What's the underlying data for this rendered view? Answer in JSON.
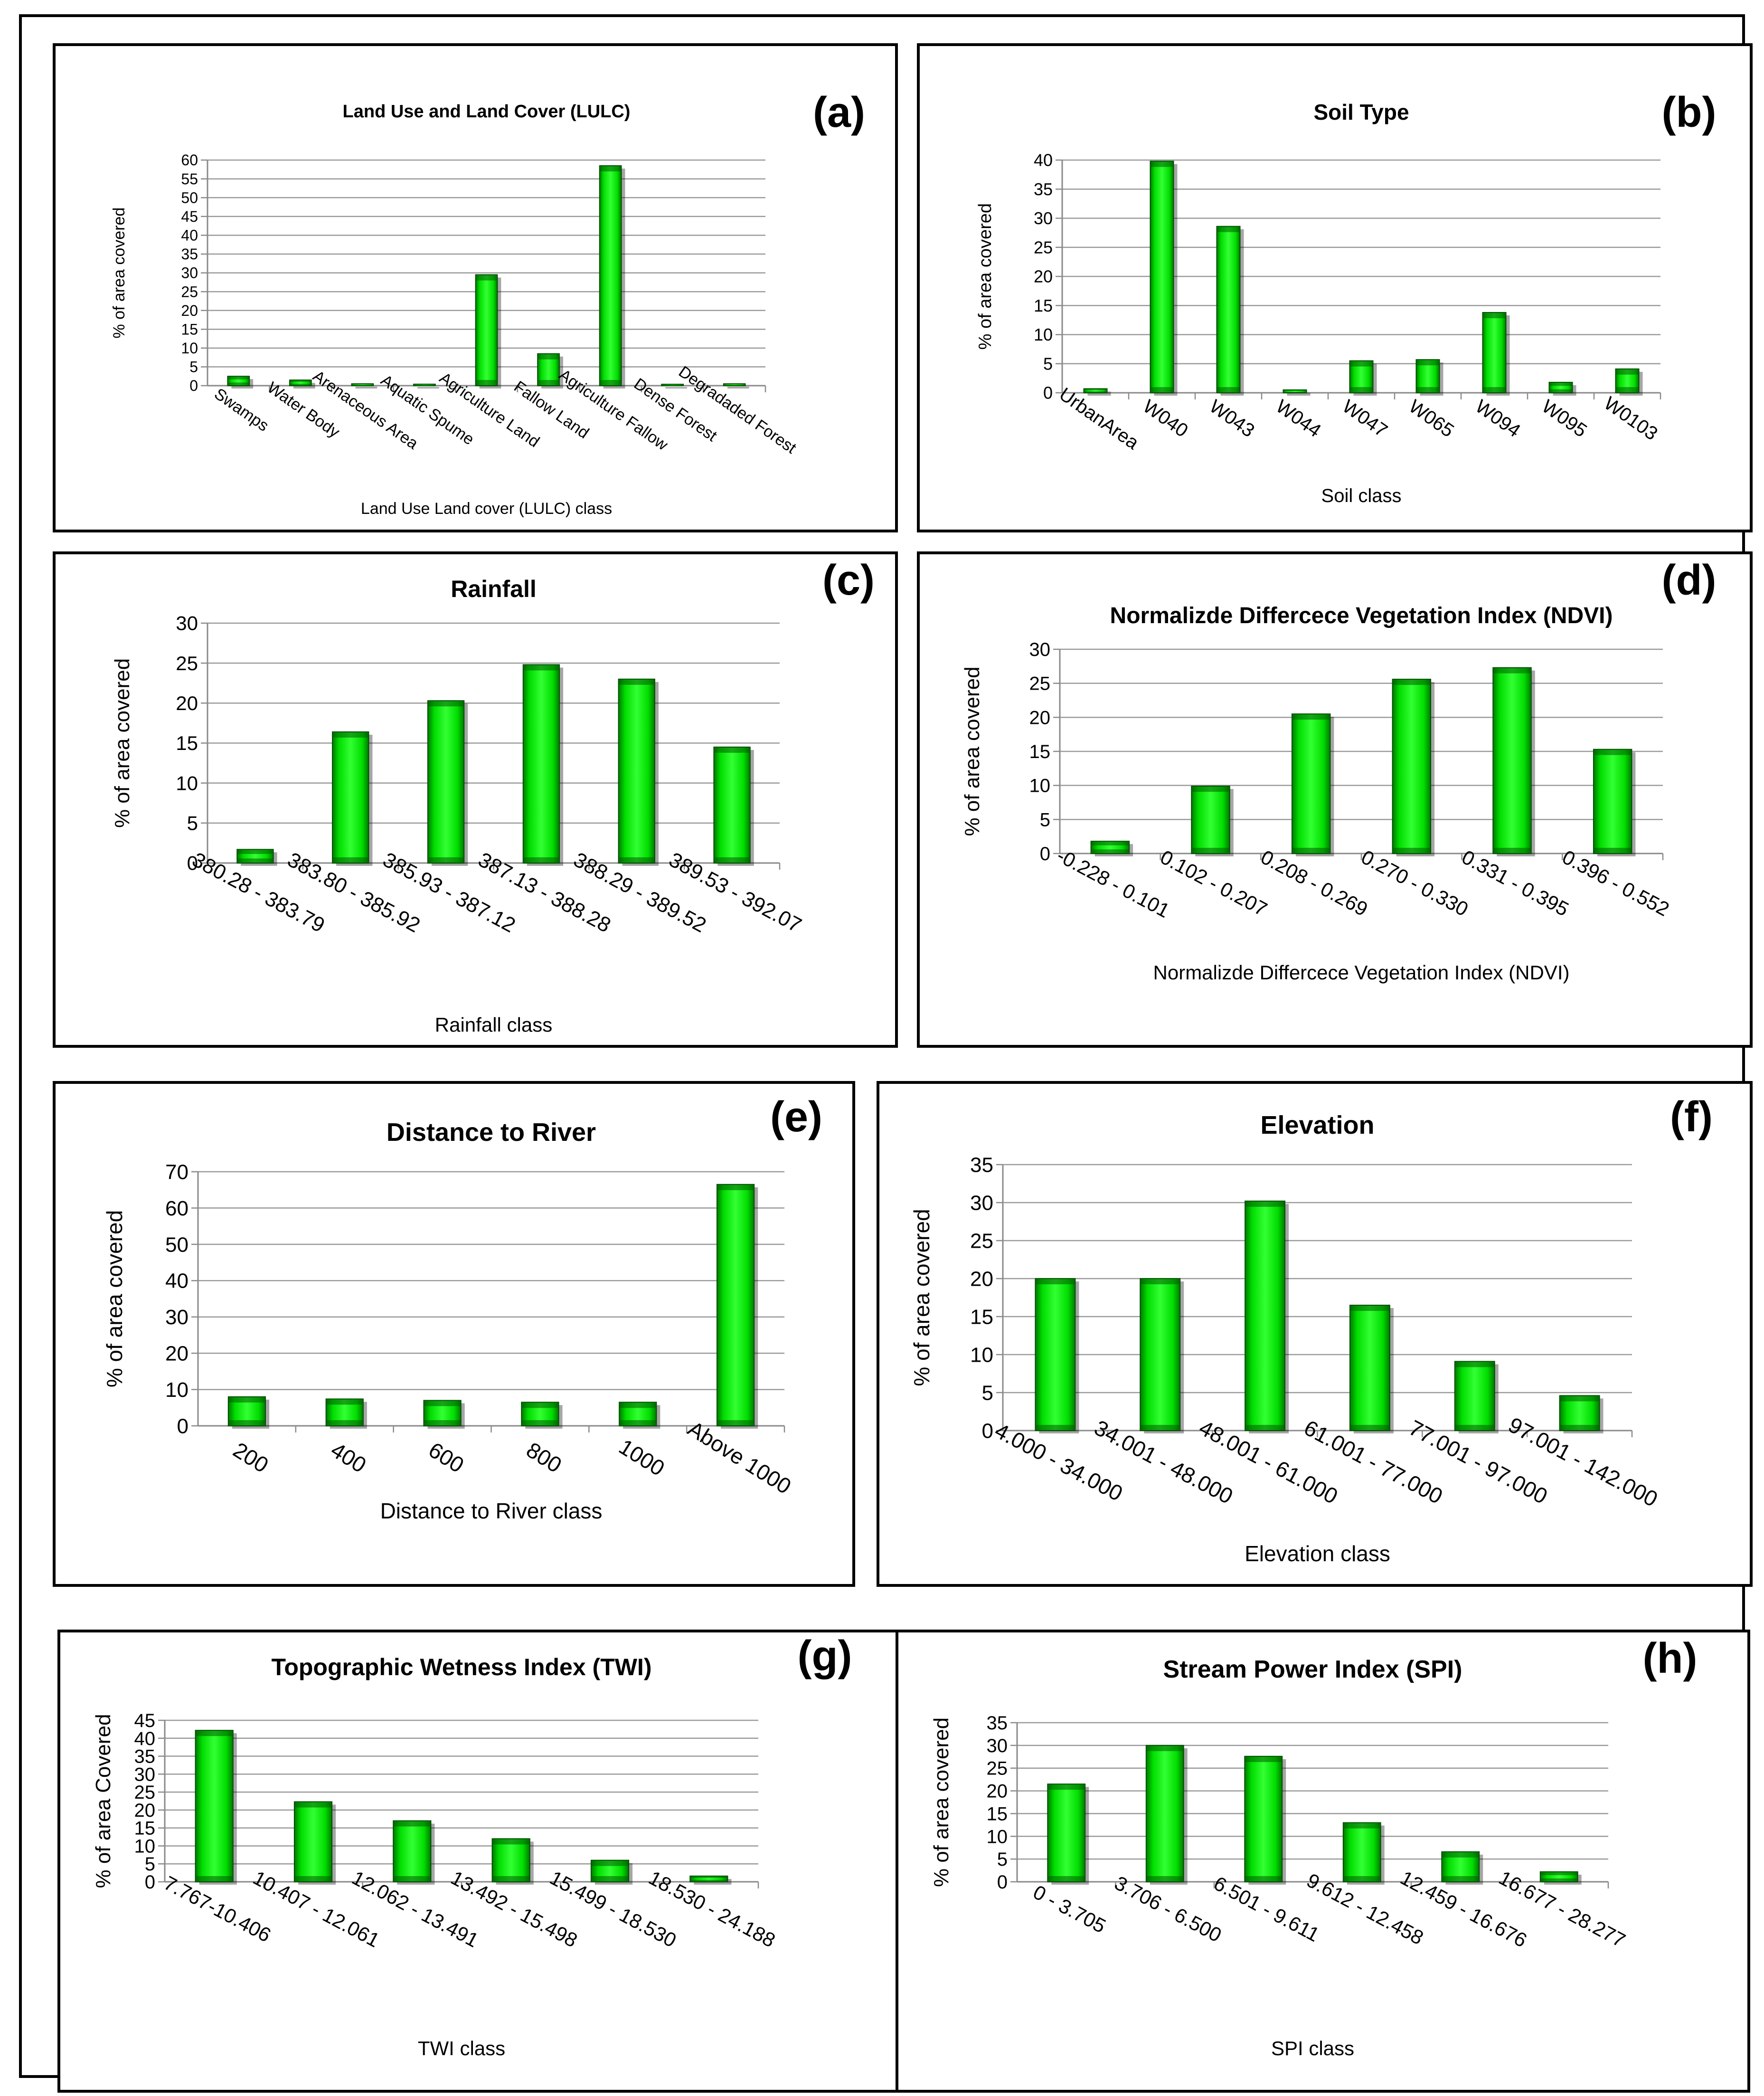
{
  "chart_data": [
    {
      "id": "a",
      "type": "bar",
      "tag": "(a)",
      "title": "Land Use and Land Cover (LULC)",
      "xlabel": "Land Use Land cover (LULC) class",
      "ylabel": "% of area covered",
      "ylim": [
        0,
        60
      ],
      "ytick_step": 5,
      "yticks": [
        "0",
        "5",
        "10",
        "15",
        "20",
        "25",
        "30",
        "35",
        "40",
        "45",
        "50",
        "55",
        "60"
      ],
      "grid": true,
      "categories": [
        "Swamps",
        "Water Body",
        "Arenaceous Area",
        "Aquatic Spume",
        "Agriculture Land",
        "Fallow Land",
        "Agriculture Fallow",
        "Dense Forest",
        "Degradaded Forest"
      ],
      "values": [
        2.5,
        1.5,
        0.5,
        0.4,
        29.5,
        8.5,
        58.5,
        0.3,
        0.5
      ]
    },
    {
      "id": "b",
      "type": "bar",
      "tag": "(b)",
      "title": "Soil Type",
      "xlabel": "Soil  class",
      "ylabel": "% of area covered",
      "ylim": [
        0,
        40
      ],
      "ytick_step": 5,
      "yticks": [
        "0",
        "5",
        "10",
        "15",
        "20",
        "25",
        "30",
        "35",
        "40"
      ],
      "grid": true,
      "categories": [
        "UrbanArea",
        "W040",
        "W043",
        "W044",
        "W047",
        "W065",
        "W094",
        "W095",
        "W0103"
      ],
      "values": [
        0.7,
        39.8,
        28.6,
        0.5,
        5.5,
        5.7,
        13.8,
        1.8,
        4.1
      ]
    },
    {
      "id": "c",
      "type": "bar",
      "tag": "(c)",
      "title": "Rainfall",
      "xlabel": "Rainfall class",
      "ylabel": "% of area covered",
      "ylim": [
        0,
        30
      ],
      "ytick_step": 5,
      "yticks": [
        "0",
        "5",
        "10",
        "15",
        "20",
        "25",
        "30"
      ],
      "grid": true,
      "categories": [
        "380.28 - 383.79",
        "383.80 - 385.92",
        "385.93 - 387.12",
        "387.13 - 388.28",
        "388.29 - 389.52",
        "389.53 - 392.07"
      ],
      "values": [
        1.7,
        16.4,
        20.3,
        24.8,
        23,
        14.5
      ]
    },
    {
      "id": "d",
      "type": "bar",
      "tag": "(d)",
      "title": "Normalizde Differcece Vegetation Index (NDVI)",
      "xlabel": "Normalizde Differcece Vegetation Index (NDVI)",
      "ylabel": "% of area covered",
      "ylim": [
        0,
        30
      ],
      "ytick_step": 5,
      "yticks": [
        "0",
        "5",
        "10",
        "15",
        "20",
        "25",
        "30"
      ],
      "grid": true,
      "categories": [
        "-0.228 - 0.101",
        "0.102 - 0.207",
        "0.208 - 0.269",
        "0.270 - 0.330",
        "0.331 - 0.395",
        "0.396 - 0.552"
      ],
      "values": [
        1.8,
        9.9,
        20.5,
        25.6,
        27.3,
        15.3
      ]
    },
    {
      "id": "e",
      "type": "bar",
      "tag": "(e)",
      "title": "Distance to River",
      "xlabel": "Distance to River class",
      "ylabel": "% of area covered",
      "ylim": [
        0,
        70
      ],
      "ytick_step": 10,
      "yticks": [
        "0",
        "10",
        "20",
        "30",
        "40",
        "50",
        "60",
        "70"
      ],
      "grid": true,
      "categories": [
        "200",
        "400",
        "600",
        "800",
        "1000",
        "Above 1000"
      ],
      "values": [
        8,
        7.4,
        7,
        6.5,
        6.5,
        66.5
      ]
    },
    {
      "id": "f",
      "type": "bar",
      "tag": "(f)",
      "title": "Elevation",
      "xlabel": "Elevation class",
      "ylabel": "% of area covered",
      "ylim": [
        0,
        35
      ],
      "ytick_step": 5,
      "yticks": [
        "0",
        "5",
        "10",
        "15",
        "20",
        "25",
        "30",
        "35"
      ],
      "grid": true,
      "categories": [
        "4.000 - 34.000",
        "34.001 - 48.000",
        "48.001 - 61.000",
        "61.001 - 77.000",
        "77.001 - 97.000",
        "97.001 - 142.000"
      ],
      "values": [
        20,
        20,
        30.2,
        16.5,
        9.1,
        4.6
      ]
    },
    {
      "id": "g",
      "type": "bar",
      "tag": "(g)",
      "title": "Topographic  Wetness Index (TWI)",
      "xlabel": "TWI class",
      "ylabel": "% of area Covered",
      "ylim": [
        0,
        45
      ],
      "ytick_step": 5,
      "yticks": [
        "0",
        "5",
        "10",
        "15",
        "20",
        "25",
        "30",
        "35",
        "40",
        "45"
      ],
      "grid": true,
      "categories": [
        "7.767-10.406",
        "10.407 - 12.061",
        "12.062 - 13.491",
        "13.492 - 15.498",
        "15.499 - 18.530",
        "18.530 - 24.188"
      ],
      "values": [
        42.2,
        22.3,
        17,
        12,
        6,
        1.6
      ]
    },
    {
      "id": "h",
      "type": "bar",
      "tag": "(h)",
      "title": "Stream Power Index (SPI)",
      "xlabel": "SPI class",
      "ylabel": "% of area covered",
      "ylim": [
        0,
        35
      ],
      "ytick_step": 5,
      "yticks": [
        "0",
        "5",
        "10",
        "15",
        "20",
        "25",
        "30",
        "35"
      ],
      "grid": true,
      "categories": [
        "0 - 3.705",
        "3.706 - 6.500",
        "6.501 - 9.611",
        "9.612 - 12.458",
        "12.459 - 16.676",
        "16.677 - 28.277"
      ],
      "values": [
        21.5,
        30,
        27.6,
        13,
        6.6,
        2.2
      ]
    }
  ],
  "colors": {
    "bar_light": "#33ff33",
    "bar_mid": "#00dd00",
    "bar_dark": "#007a00",
    "grid": "#9a9a9a",
    "axis": "#8a8a8a"
  }
}
